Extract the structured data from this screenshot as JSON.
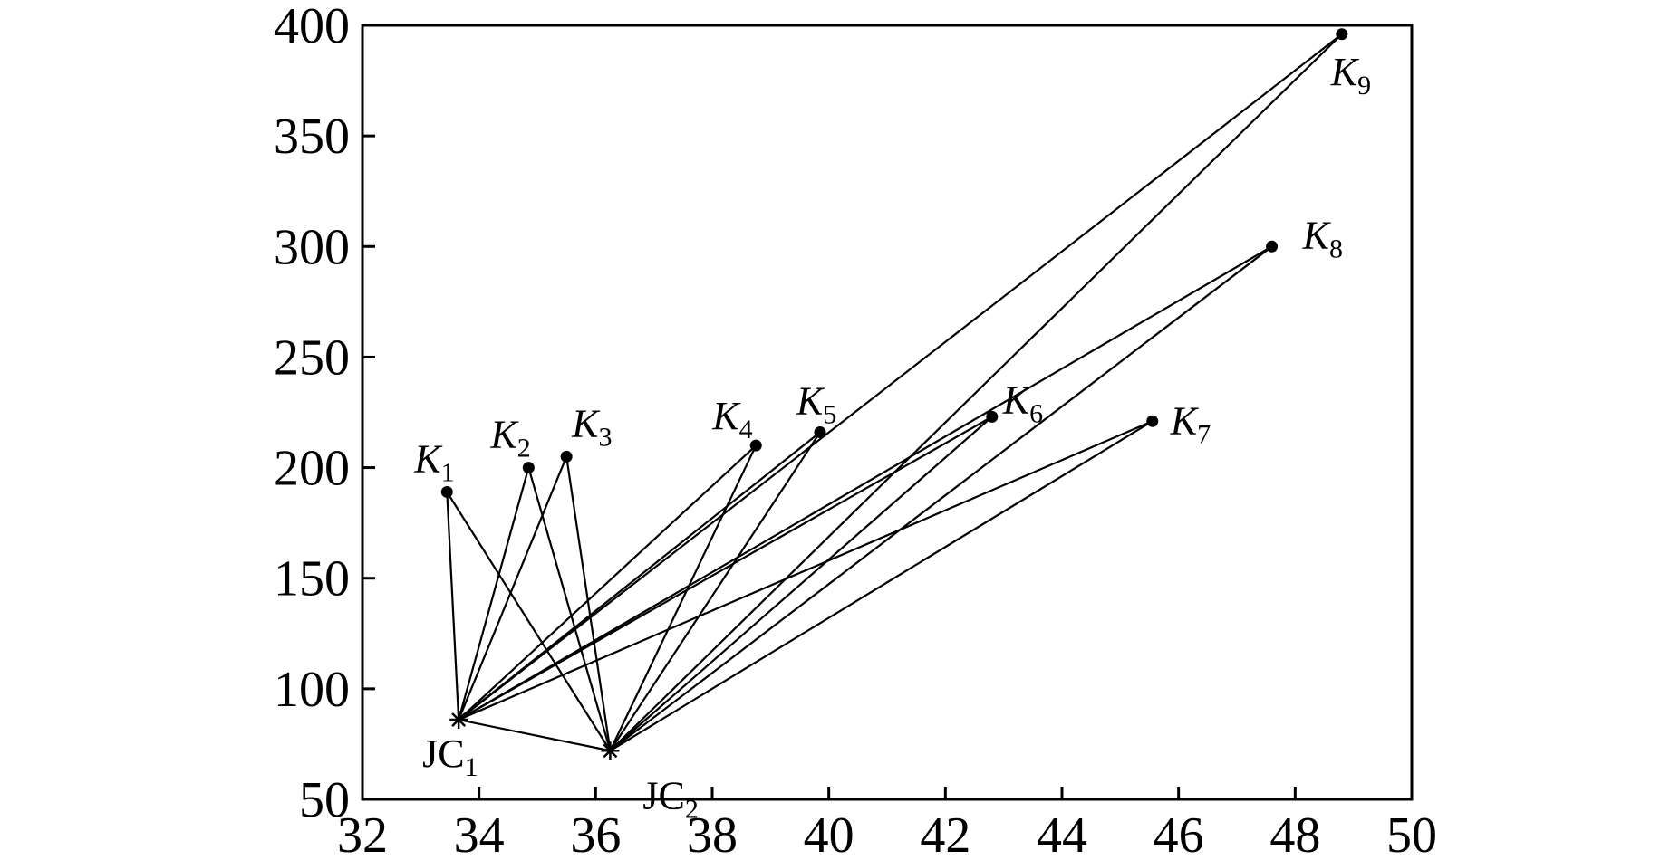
{
  "chart_data": {
    "type": "scatter",
    "title": "",
    "xlabel": "",
    "ylabel": "",
    "xlim": [
      32,
      50
    ],
    "ylim": [
      50,
      400
    ],
    "xticks": [
      32,
      34,
      36,
      38,
      40,
      42,
      44,
      46,
      48,
      50
    ],
    "yticks": [
      50,
      100,
      150,
      200,
      250,
      300,
      350,
      400
    ],
    "grid": false,
    "points": [
      {
        "id": "JC1",
        "prefix": "JC",
        "sub": "1",
        "italic": false,
        "marker": "star",
        "x": 33.65,
        "y": 86
      },
      {
        "id": "JC2",
        "prefix": "JC",
        "sub": "2",
        "italic": false,
        "marker": "star",
        "x": 36.25,
        "y": 72
      },
      {
        "id": "K1",
        "prefix": "K",
        "sub": "1",
        "italic": true,
        "marker": "dot",
        "x": 33.45,
        "y": 189
      },
      {
        "id": "K2",
        "prefix": "K",
        "sub": "2",
        "italic": true,
        "marker": "dot",
        "x": 34.85,
        "y": 200
      },
      {
        "id": "K3",
        "prefix": "K",
        "sub": "3",
        "italic": true,
        "marker": "dot",
        "x": 35.5,
        "y": 205
      },
      {
        "id": "K4",
        "prefix": "K",
        "sub": "4",
        "italic": true,
        "marker": "dot",
        "x": 38.75,
        "y": 210
      },
      {
        "id": "K5",
        "prefix": "K",
        "sub": "5",
        "italic": true,
        "marker": "dot",
        "x": 39.85,
        "y": 216
      },
      {
        "id": "K6",
        "prefix": "K",
        "sub": "6",
        "italic": true,
        "marker": "dot",
        "x": 42.8,
        "y": 223
      },
      {
        "id": "K7",
        "prefix": "K",
        "sub": "7",
        "italic": true,
        "marker": "dot",
        "x": 45.55,
        "y": 221
      },
      {
        "id": "K8",
        "prefix": "K",
        "sub": "8",
        "italic": true,
        "marker": "dot",
        "x": 47.6,
        "y": 300
      },
      {
        "id": "K9",
        "prefix": "K",
        "sub": "9",
        "italic": true,
        "marker": "dot",
        "x": 48.8,
        "y": 396
      }
    ],
    "connections": [
      [
        "JC1",
        "JC2"
      ],
      [
        "JC1",
        "K1"
      ],
      [
        "JC1",
        "K2"
      ],
      [
        "JC1",
        "K3"
      ],
      [
        "JC1",
        "K4"
      ],
      [
        "JC1",
        "K5"
      ],
      [
        "JC1",
        "K6"
      ],
      [
        "JC1",
        "K7"
      ],
      [
        "JC1",
        "K8"
      ],
      [
        "JC1",
        "K9"
      ],
      [
        "JC2",
        "K1"
      ],
      [
        "JC2",
        "K2"
      ],
      [
        "JC2",
        "K3"
      ],
      [
        "JC2",
        "K4"
      ],
      [
        "JC2",
        "K5"
      ],
      [
        "JC2",
        "K6"
      ],
      [
        "JC2",
        "K7"
      ],
      [
        "JC2",
        "K8"
      ],
      [
        "JC2",
        "K9"
      ]
    ],
    "colors": {
      "line": "#000000",
      "marker": "#000000",
      "axis": "#000000",
      "background": "#ffffff"
    }
  }
}
